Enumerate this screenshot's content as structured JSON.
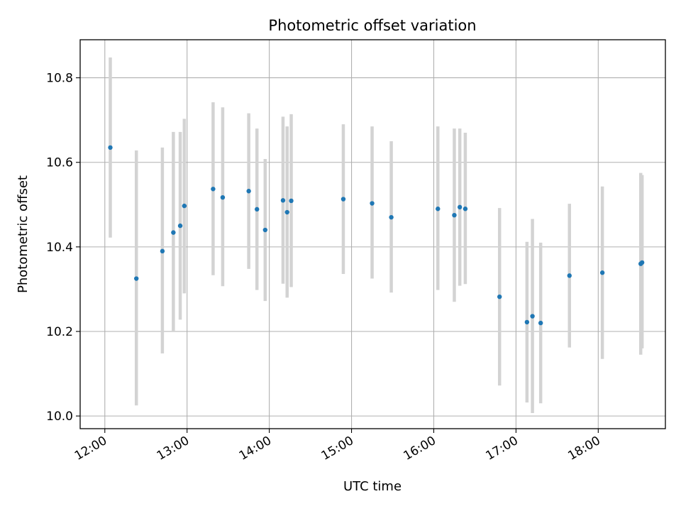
{
  "chart_data": {
    "type": "scatter",
    "title": "Photometric offset variation",
    "xlabel": "UTC time",
    "ylabel": "Photometric offset",
    "x_ticks": [
      "12:00",
      "13:00",
      "14:00",
      "15:00",
      "16:00",
      "17:00",
      "18:00"
    ],
    "y_ticks": [
      "10.0",
      "10.2",
      "10.4",
      "10.6",
      "10.8"
    ],
    "xlim": [
      "11:42",
      "18:49"
    ],
    "ylim": [
      9.97,
      10.89
    ],
    "grid": true,
    "colors": {
      "point": "#1f77b4",
      "errorbar": "#d3d3d3",
      "grid": "#b0b0b0"
    },
    "points": [
      {
        "x": "12:04",
        "y": 10.635,
        "ylow": 10.422,
        "yhigh": 10.848
      },
      {
        "x": "12:23",
        "y": 10.325,
        "ylow": 10.025,
        "yhigh": 10.628
      },
      {
        "x": "12:42",
        "y": 10.39,
        "ylow": 10.148,
        "yhigh": 10.635
      },
      {
        "x": "12:50",
        "y": 10.434,
        "ylow": 10.2,
        "yhigh": 10.672
      },
      {
        "x": "12:55",
        "y": 10.45,
        "ylow": 10.228,
        "yhigh": 10.672
      },
      {
        "x": "12:58",
        "y": 10.497,
        "ylow": 10.29,
        "yhigh": 10.703
      },
      {
        "x": "13:19",
        "y": 10.537,
        "ylow": 10.333,
        "yhigh": 10.742
      },
      {
        "x": "13:26",
        "y": 10.517,
        "ylow": 10.307,
        "yhigh": 10.73
      },
      {
        "x": "13:45",
        "y": 10.532,
        "ylow": 10.348,
        "yhigh": 10.716
      },
      {
        "x": "13:51",
        "y": 10.489,
        "ylow": 10.298,
        "yhigh": 10.68
      },
      {
        "x": "13:57",
        "y": 10.44,
        "ylow": 10.272,
        "yhigh": 10.608
      },
      {
        "x": "14:10",
        "y": 10.51,
        "ylow": 10.313,
        "yhigh": 10.708
      },
      {
        "x": "14:13",
        "y": 10.482,
        "ylow": 10.28,
        "yhigh": 10.685
      },
      {
        "x": "14:16",
        "y": 10.509,
        "ylow": 10.305,
        "yhigh": 10.714
      },
      {
        "x": "14:54",
        "y": 10.513,
        "ylow": 10.336,
        "yhigh": 10.69
      },
      {
        "x": "15:15",
        "y": 10.503,
        "ylow": 10.325,
        "yhigh": 10.685
      },
      {
        "x": "15:29",
        "y": 10.47,
        "ylow": 10.292,
        "yhigh": 10.65
      },
      {
        "x": "16:03",
        "y": 10.49,
        "ylow": 10.298,
        "yhigh": 10.685
      },
      {
        "x": "16:15",
        "y": 10.475,
        "ylow": 10.27,
        "yhigh": 10.68
      },
      {
        "x": "16:19",
        "y": 10.494,
        "ylow": 10.308,
        "yhigh": 10.68
      },
      {
        "x": "16:23",
        "y": 10.49,
        "ylow": 10.312,
        "yhigh": 10.67
      },
      {
        "x": "16:48",
        "y": 10.282,
        "ylow": 10.072,
        "yhigh": 10.492
      },
      {
        "x": "17:08",
        "y": 10.222,
        "ylow": 10.032,
        "yhigh": 10.412
      },
      {
        "x": "17:12",
        "y": 10.236,
        "ylow": 10.007,
        "yhigh": 10.466
      },
      {
        "x": "17:18",
        "y": 10.22,
        "ylow": 10.03,
        "yhigh": 10.41
      },
      {
        "x": "17:39",
        "y": 10.332,
        "ylow": 10.162,
        "yhigh": 10.502
      },
      {
        "x": "18:03",
        "y": 10.339,
        "ylow": 10.135,
        "yhigh": 10.543
      },
      {
        "x": "18:31",
        "y": 10.36,
        "ylow": 10.145,
        "yhigh": 10.575
      },
      {
        "x": "18:32",
        "y": 10.363,
        "ylow": 10.16,
        "yhigh": 10.57
      }
    ]
  }
}
